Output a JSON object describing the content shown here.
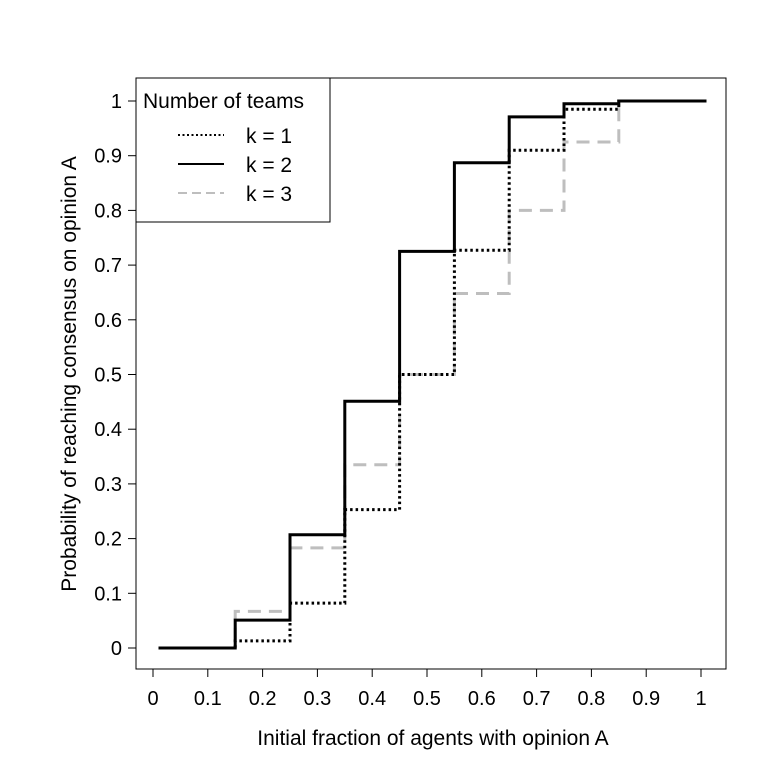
{
  "chart_data": {
    "type": "line",
    "step": true,
    "title": "",
    "xlabel": "Initial fraction of agents with opinion A",
    "ylabel": "Probability of reaching consensus on opinion A",
    "xlim": [
      0,
      1
    ],
    "ylim": [
      0,
      1
    ],
    "x_ticks": [
      "0",
      "0.1",
      "0.2",
      "0.3",
      "0.4",
      "0.5",
      "0.6",
      "0.7",
      "0.8",
      "0.9",
      "1"
    ],
    "y_ticks": [
      "0",
      "0.1",
      "0.2",
      "0.3",
      "0.4",
      "0.5",
      "0.6",
      "0.7",
      "0.8",
      "0.9",
      "1"
    ],
    "grid": false,
    "legend": {
      "title": "Number of teams",
      "position": "top-left"
    },
    "series": [
      {
        "name": "k = 1",
        "style": "dotted",
        "color": "#000000",
        "x": [
          0.01,
          0.15,
          0.25,
          0.35,
          0.45,
          0.55,
          0.65,
          0.75,
          0.85,
          1.01
        ],
        "y": [
          0.0,
          0.013,
          0.082,
          0.253,
          0.5,
          0.727,
          0.91,
          0.985,
          1.0,
          1.0
        ]
      },
      {
        "name": "k = 2",
        "style": "solid",
        "color": "#000000",
        "x": [
          0.01,
          0.15,
          0.25,
          0.35,
          0.45,
          0.55,
          0.65,
          0.75,
          0.85,
          1.01
        ],
        "y": [
          0.0,
          0.051,
          0.207,
          0.451,
          0.725,
          0.887,
          0.971,
          0.995,
          1.0,
          1.0
        ]
      },
      {
        "name": "k = 3",
        "style": "dashed",
        "color": "#bebebe",
        "x": [
          0.01,
          0.15,
          0.25,
          0.35,
          0.45,
          0.55,
          0.65,
          0.75,
          0.85,
          1.01
        ],
        "y": [
          0.0,
          0.067,
          0.183,
          0.335,
          0.5,
          0.648,
          0.8,
          0.925,
          1.0,
          1.0
        ]
      }
    ]
  }
}
